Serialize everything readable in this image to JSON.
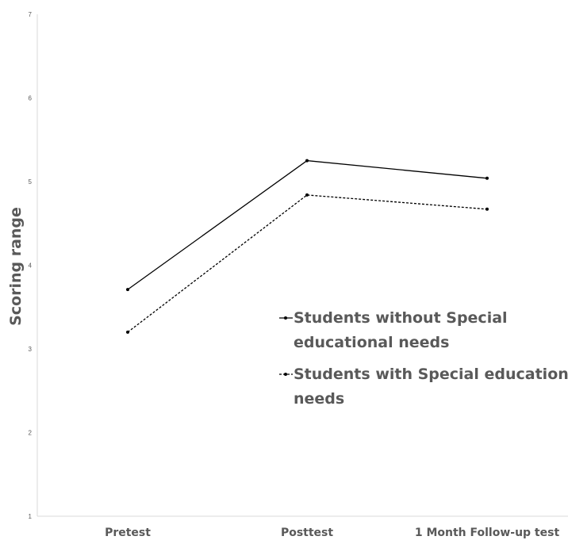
{
  "chart_data": {
    "type": "line",
    "categories": [
      "Pretest",
      "Posttest",
      "1 Month Follow-up test"
    ],
    "series": [
      {
        "name": "Students without Special educational needs",
        "values": [
          3.71,
          5.25,
          5.04
        ],
        "line_style": "solid",
        "color": "#000000"
      },
      {
        "name": "Students with Special educational needs",
        "values": [
          3.2,
          4.84,
          4.67
        ],
        "line_style": "dashed",
        "color": "#000000"
      }
    ],
    "xlabel": "",
    "ylabel": "Scoring range",
    "ylim": [
      1,
      7
    ],
    "yticks": [
      "1",
      "2",
      "3",
      "4",
      "5",
      "6",
      "7"
    ],
    "grid": false,
    "legend": {
      "placement": "center-right",
      "entries": [
        {
          "lines": [
            "Students without Special",
            "educational needs"
          ]
        },
        {
          "lines": [
            "Students with Special educational",
            "needs"
          ]
        }
      ]
    },
    "colors": {
      "axis": "#d9d9d9",
      "text": "#595959"
    }
  }
}
